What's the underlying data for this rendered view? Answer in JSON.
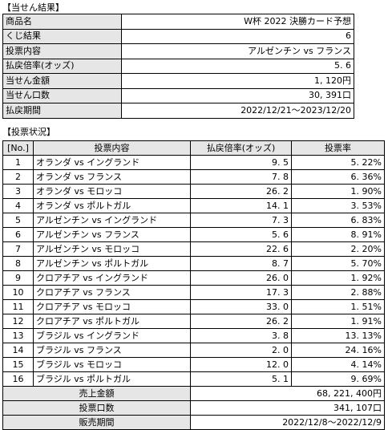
{
  "result_section": {
    "title": "【当せん結果】",
    "rows": [
      {
        "label": "商品名",
        "value": "W杯 2022 決勝カード予想"
      },
      {
        "label": "くじ結果",
        "value": "6"
      },
      {
        "label": "投票内容",
        "value": "アルゼンチン vs フランス"
      },
      {
        "label": "払戻倍率(オッズ)",
        "value": "5. 6"
      },
      {
        "label": "当せん金額",
        "value": "1, 120円"
      },
      {
        "label": "当せん口数",
        "value": "30, 391口"
      },
      {
        "label": "払戻期間",
        "value": "2022/12/21～2023/12/20"
      }
    ]
  },
  "voting_section": {
    "title": "【投票状況】",
    "headers": {
      "no": "[No.]",
      "content": "投票内容",
      "odds": "払戻倍率(オッズ)",
      "rate": "投票率"
    },
    "rows": [
      {
        "no": "1",
        "content": "オランダ vs イングランド",
        "odds": "9. 5",
        "rate": "5. 22%"
      },
      {
        "no": "2",
        "content": "オランダ vs フランス",
        "odds": "7. 8",
        "rate": "6. 36%"
      },
      {
        "no": "3",
        "content": "オランダ vs モロッコ",
        "odds": "26. 2",
        "rate": "1. 90%"
      },
      {
        "no": "4",
        "content": "オランダ vs ポルトガル",
        "odds": "14. 1",
        "rate": "3. 53%"
      },
      {
        "no": "5",
        "content": "アルゼンチン vs イングランド",
        "odds": "7. 3",
        "rate": "6. 83%"
      },
      {
        "no": "6",
        "content": "アルゼンチン vs フランス",
        "odds": "5. 6",
        "rate": "8. 91%"
      },
      {
        "no": "7",
        "content": "アルゼンチン vs モロッコ",
        "odds": "22. 6",
        "rate": "2. 20%"
      },
      {
        "no": "8",
        "content": "アルゼンチン vs ポルトガル",
        "odds": "8. 7",
        "rate": "5. 70%"
      },
      {
        "no": "9",
        "content": "クロアチア vs イングランド",
        "odds": "26. 0",
        "rate": "1. 92%"
      },
      {
        "no": "10",
        "content": "クロアチア vs フランス",
        "odds": "17. 3",
        "rate": "2. 88%"
      },
      {
        "no": "11",
        "content": "クロアチア vs モロッコ",
        "odds": "33. 0",
        "rate": "1. 51%"
      },
      {
        "no": "12",
        "content": "クロアチア vs ポルトガル",
        "odds": "26. 2",
        "rate": "1. 91%"
      },
      {
        "no": "13",
        "content": "ブラジル vs イングランド",
        "odds": "3. 8",
        "rate": "13. 13%"
      },
      {
        "no": "14",
        "content": "ブラジル vs フランス",
        "odds": "2. 0",
        "rate": "24. 16%"
      },
      {
        "no": "15",
        "content": "ブラジル vs モロッコ",
        "odds": "12. 0",
        "rate": "4. 14%"
      },
      {
        "no": "16",
        "content": "ブラジル vs ポルトガル",
        "odds": "5. 1",
        "rate": "9. 69%"
      }
    ],
    "summary": [
      {
        "label": "売上金額",
        "value": "68, 221, 400円"
      },
      {
        "label": "投票口数",
        "value": "341, 107口"
      },
      {
        "label": "販売期間",
        "value": "2022/12/8～2022/12/9"
      }
    ]
  }
}
